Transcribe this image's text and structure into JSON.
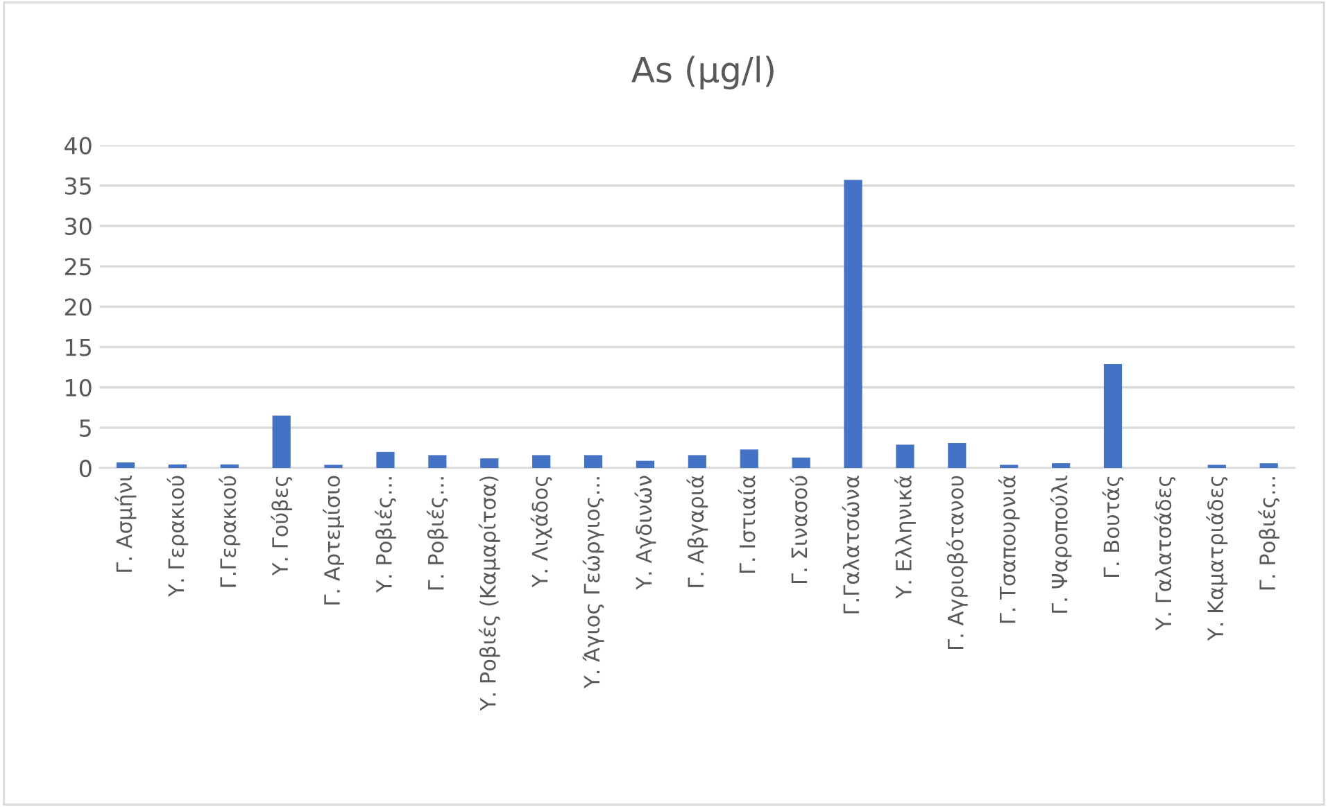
{
  "chart_data": {
    "type": "bar",
    "title": "As (μg/l)",
    "categories": [
      "Γ. Ασμήνι",
      "Υ. Γερακιού",
      "Γ.Γερακιού",
      "Υ. Γούβες",
      "Γ. Αρτεμίσιο",
      "Υ. Ροβιές…",
      "Γ. Ροβιές…",
      "Υ. Ροβιές (Καμαρίτσα)",
      "Υ. Λιχάδος",
      "Υ. Άγιος Γεώργιος…",
      "Υ. Αγδινών",
      "Γ. Αβγαριά",
      "Γ. Ιστιαία",
      "Γ. Σινασού",
      "Γ.Γαλατσώνα",
      "Υ. Ελληνικά",
      "Γ. Αγριοβότανου",
      "Γ. Τσαπουρνιά",
      "Γ. Ψαροπούλι",
      "Γ. Βουτάς",
      "Υ. Γαλατσάδες",
      "Υ. Καματριάδες",
      "Γ. Ροβιές…"
    ],
    "values": [
      0.7,
      0.45,
      0.45,
      6.5,
      0.4,
      2.0,
      1.6,
      1.2,
      1.6,
      1.6,
      0.9,
      1.6,
      2.3,
      1.3,
      35.7,
      2.9,
      3.1,
      0.4,
      0.6,
      12.9,
      0,
      0.4,
      0.6
    ],
    "color": "#4472c4",
    "ylim": [
      0,
      40
    ],
    "yticks": [
      0,
      5,
      10,
      15,
      20,
      25,
      30,
      35,
      40
    ],
    "grid": "y"
  }
}
